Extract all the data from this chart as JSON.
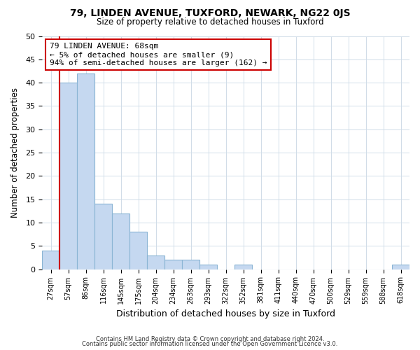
{
  "title1": "79, LINDEN AVENUE, TUXFORD, NEWARK, NG22 0JS",
  "title2": "Size of property relative to detached houses in Tuxford",
  "xlabel": "Distribution of detached houses by size in Tuxford",
  "ylabel": "Number of detached properties",
  "bar_labels": [
    "27sqm",
    "57sqm",
    "86sqm",
    "116sqm",
    "145sqm",
    "175sqm",
    "204sqm",
    "234sqm",
    "263sqm",
    "293sqm",
    "322sqm",
    "352sqm",
    "381sqm",
    "411sqm",
    "440sqm",
    "470sqm",
    "500sqm",
    "529sqm",
    "559sqm",
    "588sqm",
    "618sqm"
  ],
  "bar_values": [
    4,
    40,
    42,
    14,
    12,
    8,
    3,
    2,
    2,
    1,
    0,
    1,
    0,
    0,
    0,
    0,
    0,
    0,
    0,
    0,
    1
  ],
  "bar_color": "#c5d8f0",
  "bar_edge_color": "#8ab4d4",
  "ylim": [
    0,
    50
  ],
  "yticks": [
    0,
    5,
    10,
    15,
    20,
    25,
    30,
    35,
    40,
    45,
    50
  ],
  "property_line_x": 1,
  "property_line_color": "#cc0000",
  "annotation_line1": "79 LINDEN AVENUE: 68sqm",
  "annotation_line2": "← 5% of detached houses are smaller (9)",
  "annotation_line3": "94% of semi-detached houses are larger (162) →",
  "annotation_box_color": "#ffffff",
  "annotation_box_edge": "#cc0000",
  "footer1": "Contains HM Land Registry data © Crown copyright and database right 2024.",
  "footer2": "Contains public sector information licensed under the Open Government Licence v3.0.",
  "background_color": "#ffffff",
  "grid_color": "#d0dce8"
}
